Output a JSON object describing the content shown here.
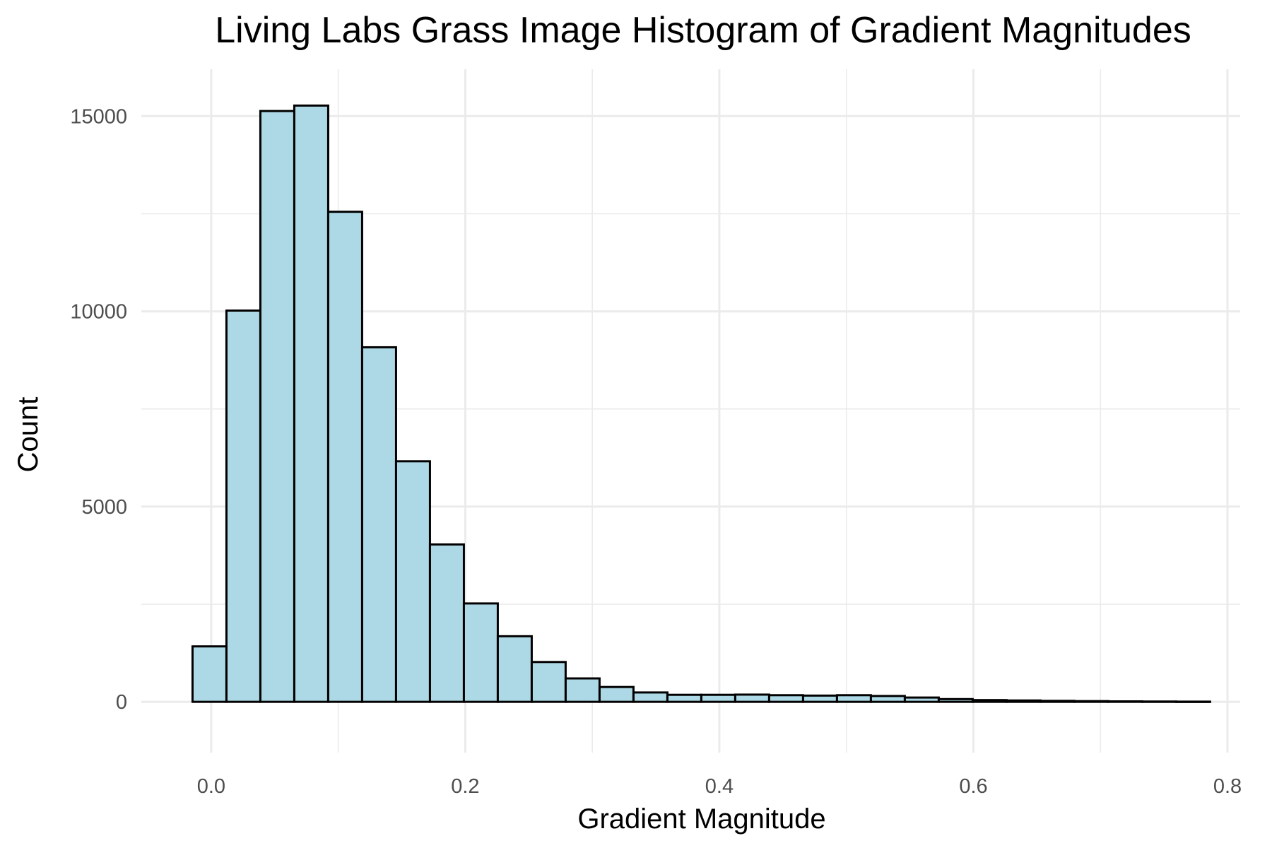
{
  "chart_data": {
    "type": "bar",
    "title": "Living Labs Grass Image Histogram of Gradient Magnitudes",
    "xlabel": "Gradient Magnitude",
    "ylabel": "Count",
    "xlim": [
      -0.055,
      0.81
    ],
    "ylim": [
      -1300,
      16200
    ],
    "x_ticks": [
      0.0,
      0.2,
      0.4,
      0.6,
      0.8
    ],
    "x_tick_labels": [
      "0.0",
      "0.2",
      "0.4",
      "0.6",
      "0.8"
    ],
    "y_ticks": [
      0,
      5000,
      10000,
      15000
    ],
    "y_tick_labels": [
      "0",
      "5000",
      "10000",
      "15000"
    ],
    "grid": true,
    "bin_width": 0.0267,
    "bins_start": -0.0147,
    "bar_color": "#add8e6",
    "bar_edge_color": "#000000",
    "values": [
      1420,
      10020,
      15130,
      15270,
      12550,
      9080,
      6160,
      4030,
      2520,
      1680,
      1020,
      600,
      380,
      240,
      180,
      180,
      185,
      170,
      160,
      170,
      150,
      110,
      70,
      45,
      35,
      25,
      18,
      12,
      8,
      5
    ]
  }
}
